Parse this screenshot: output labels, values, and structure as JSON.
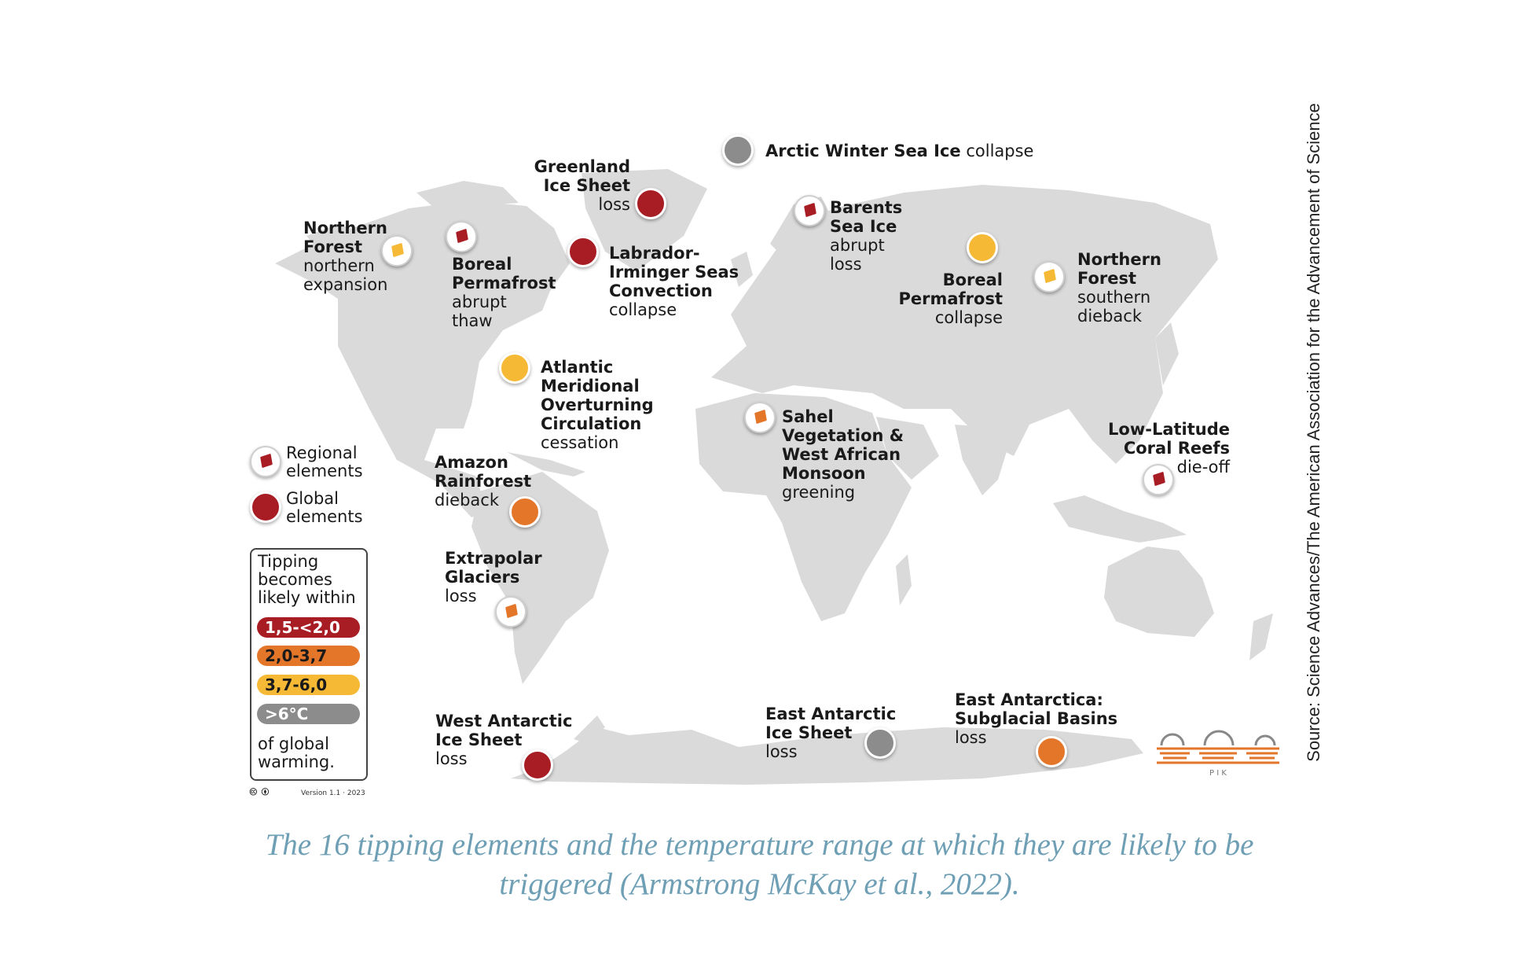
{
  "colors": {
    "land": "#dadada",
    "band_1": "#a81c24",
    "band_2": "#e4762a",
    "band_3": "#f6b936",
    "band_4": "#8c8c8c",
    "caption": "#6e9fb4"
  },
  "elements": [
    {
      "id": "arctic-winter-sea-ice",
      "name": "Arctic Winter Sea Ice",
      "effect": "collapse",
      "type": "global",
      "band": "band_4"
    },
    {
      "id": "greenland-ice-sheet",
      "name": "Greenland Ice Sheet",
      "effect": "loss",
      "type": "global",
      "band": "band_1"
    },
    {
      "id": "barents-sea-ice",
      "name": "Barents Sea Ice",
      "effect": "abrupt loss",
      "type": "regional",
      "band": "band_1"
    },
    {
      "id": "northern-forest-expansion",
      "name": "Northern Forest",
      "effect": "northern expansion",
      "type": "regional",
      "band": "band_3"
    },
    {
      "id": "boreal-permafrost-thaw",
      "name": "Boreal Permafrost",
      "effect": "abrupt thaw",
      "type": "regional",
      "band": "band_1"
    },
    {
      "id": "labrador-irminger",
      "name": "Labrador-Irminger Seas Convection",
      "effect": "collapse",
      "type": "global",
      "band": "band_1"
    },
    {
      "id": "boreal-permafrost-collapse",
      "name": "Boreal Permafrost",
      "effect": "collapse",
      "type": "global",
      "band": "band_3"
    },
    {
      "id": "northern-forest-dieback",
      "name": "Northern Forest",
      "effect": "southern dieback",
      "type": "regional",
      "band": "band_3"
    },
    {
      "id": "amoc",
      "name": "Atlantic Meridional Overturning Circulation",
      "effect": "cessation",
      "type": "global",
      "band": "band_3"
    },
    {
      "id": "sahel",
      "name": "Sahel Vegetation & West African Monsoon",
      "effect": "greening",
      "type": "regional",
      "band": "band_2"
    },
    {
      "id": "coral-reefs",
      "name": "Low-Latitude Coral Reefs",
      "effect": "die-off",
      "type": "regional",
      "band": "band_1"
    },
    {
      "id": "amazon",
      "name": "Amazon Rainforest",
      "effect": "dieback",
      "type": "global",
      "band": "band_2"
    },
    {
      "id": "glaciers",
      "name": "Extrapolar Glaciers",
      "effect": "loss",
      "type": "regional",
      "band": "band_2"
    },
    {
      "id": "west-antarctic",
      "name": "West Antarctic Ice Sheet",
      "effect": "loss",
      "type": "global",
      "band": "band_1"
    },
    {
      "id": "east-antarctic",
      "name": "East Antarctic Ice Sheet",
      "effect": "loss",
      "type": "global",
      "band": "band_4"
    },
    {
      "id": "subglacial-basins",
      "name": "East Antarctica: Subglacial Basins",
      "effect": "loss",
      "type": "global",
      "band": "band_2"
    }
  ],
  "labels": {
    "arctic": {
      "name": "Arctic Winter Sea Ice",
      "effect": "collapse"
    },
    "greenland": {
      "name1": "Greenland",
      "name2": "Ice Sheet",
      "effect": "loss"
    },
    "barents": {
      "name1": "Barents",
      "name2": "Sea Ice",
      "effect1": "abrupt",
      "effect2": "loss"
    },
    "nf_north": {
      "name1": "Northern",
      "name2": "Forest",
      "effect1": "northern",
      "effect2": "expansion"
    },
    "bp_thaw": {
      "name1": "Boreal",
      "name2": "Permafrost",
      "effect1": "abrupt",
      "effect2": "thaw"
    },
    "labrador": {
      "name1": "Labrador-",
      "name2": "Irminger Seas",
      "name3": "Convection",
      "effect": "collapse"
    },
    "bp_collapse": {
      "name1": "Boreal",
      "name2": "Permafrost",
      "effect": "collapse"
    },
    "nf_south": {
      "name1": "Northern",
      "name2": "Forest",
      "effect1": "southern",
      "effect2": "dieback"
    },
    "amoc": {
      "name1": "Atlantic",
      "name2": "Meridional",
      "name3": "Overturning",
      "name4": "Circulation",
      "effect": "cessation"
    },
    "sahel": {
      "name1": "Sahel",
      "name2": "Vegetation &",
      "name3": "West African",
      "name4": "Monsoon",
      "effect": "greening"
    },
    "coral": {
      "name1": "Low-Latitude",
      "name2": "Coral Reefs",
      "effect": "die-off"
    },
    "amazon": {
      "name1": "Amazon",
      "name2": "Rainforest",
      "effect": "dieback"
    },
    "glaciers": {
      "name1": "Extrapolar",
      "name2": "Glaciers",
      "effect": "loss"
    },
    "wais": {
      "name1": "West Antarctic",
      "name2": "Ice Sheet",
      "effect": "loss"
    },
    "eais": {
      "name1": "East Antarctic",
      "name2": "Ice Sheet",
      "effect": "loss"
    },
    "subglacial": {
      "name1": "East Antarctica:",
      "name2": "Subglacial Basins",
      "effect": "loss"
    }
  },
  "legend": {
    "regional_1": "Regional",
    "regional_2": "elements",
    "global_1": "Global",
    "global_2": "elements",
    "title_1": "Tipping",
    "title_2": "becomes",
    "title_3": "likely within",
    "bands": [
      {
        "key": "band_1",
        "label": "1,5-<2,0"
      },
      {
        "key": "band_2",
        "label": "2,0-3,7"
      },
      {
        "key": "band_3",
        "label": "3,7-6,0"
      },
      {
        "key": "band_4",
        "label": ">6°C"
      }
    ],
    "footer_1": "of global",
    "footer_2": "warming.",
    "version": "Version 1.1 · 2023",
    "cc": "🅭 🅯"
  },
  "logo": {
    "text": "P I K"
  },
  "source": "Source: Science Advances/The American Association for the Advancement of Science",
  "caption": {
    "line1": "The 16 tipping elements and the temperature range at which they are likely to be",
    "line2": "triggered (Armstrong McKay et al., 2022)."
  }
}
